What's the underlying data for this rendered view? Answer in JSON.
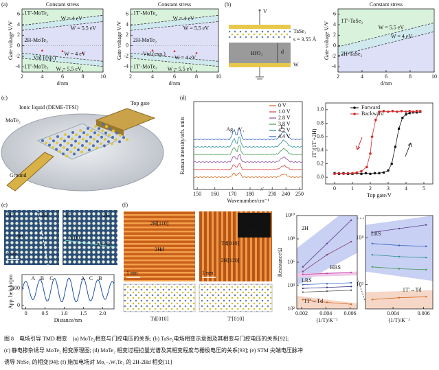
{
  "a": {
    "label": "(a)",
    "plots": [
      {
        "title": "Constant stress",
        "xlabel": "d/nm",
        "ylabel": "Gate voltage V/V",
        "xlim": [
          2,
          10
        ],
        "ylim": [
          -5,
          7
        ],
        "xticks": [
          2,
          4,
          6,
          8,
          10
        ],
        "yticks": [
          -4,
          -2,
          0,
          2,
          4,
          6
        ],
        "annotations": [
          "1T′-MoTe₂",
          "W = 4 eV",
          "W = 5.5 eV",
          "2H-MoTe₂",
          "W = 4 eV",
          "Vtd (exp.)",
          "1T′-MoTe₂",
          "W = 5.5 eV"
        ]
      },
      {
        "title": "Constant stress",
        "xlabel": "d/nm",
        "ylabel": "Gate voltage V/V",
        "xlim": [
          2,
          10
        ],
        "ylim": [
          -5,
          7
        ],
        "xticks": [
          2,
          4,
          6,
          8,
          10
        ],
        "yticks": [
          -4,
          -2,
          0,
          2,
          4,
          6
        ],
        "annotations": [
          "1T′-MoTe₂",
          "W = 4 eV",
          "W = 5.5 eV",
          "2H-MoTe₂",
          "Vtd (exp.)",
          "W = 4 eV",
          "1T′-MoTe₂",
          "W = 5.5 eV"
        ]
      }
    ]
  },
  "b": {
    "label": "(b)",
    "schematic": [
      "V",
      "TaSe₂",
      "s = 3.55 Å",
      "HfO₂",
      "d",
      "W"
    ],
    "plot": {
      "title": "Constant stress",
      "xlabel": "d/nm",
      "ylabel": "Gate voltage V/V",
      "xlim": [
        2,
        10
      ],
      "ylim": [
        -5,
        7
      ],
      "xticks": [
        2,
        4,
        6,
        8,
        10
      ],
      "yticks": [
        -4,
        -2,
        0,
        2,
        4,
        6
      ],
      "annotations": [
        "1T′-TaSe₂",
        "W = 5.5 eV",
        "W = 4 eV",
        "2H-TaSe₂"
      ]
    }
  },
  "c": {
    "label": "(c)",
    "texts": [
      "Ionic liquid (DEME-TFSI)",
      "Top gate",
      "MoTe₂",
      "Ground"
    ]
  },
  "d": {
    "label": "(d)",
    "raman": {
      "xlabel": "Wavenumber/cm⁻¹",
      "ylabel": "Raman intensity/arb. units",
      "xlim": [
        148,
        185,
        225,
        252
      ],
      "xticks": [
        150,
        160,
        170,
        180,
        230,
        240,
        250
      ],
      "peaks": [
        "Ag",
        "A′₁",
        "E′"
      ],
      "series": [
        {
          "name": "0 V",
          "color": "#d2691e"
        },
        {
          "name": "1.0 V",
          "color": "#d43f3f"
        },
        {
          "name": "2.8 V",
          "color": "#8b4c9e"
        },
        {
          "name": "3.8 V",
          "color": "#3f9a4f"
        },
        {
          "name": "4.2 V",
          "color": "#2a8f9a"
        },
        {
          "name": "4.4 V",
          "color": "#2f5fc0"
        }
      ]
    },
    "hysteresis": {
      "xlabel": "Top gate/V",
      "ylabel": "1T′/(1T′+2H)",
      "xlim": [
        -0.5,
        5.5
      ],
      "ylim": [
        -0.1,
        1.1
      ],
      "xticks": [
        0,
        1,
        2,
        3,
        4,
        5
      ],
      "yticks": [
        {
          "value": 0,
          "label": "0.0"
        },
        0.2,
        0.4,
        0.6,
        0.8,
        {
          "value": 1,
          "label": "1.0"
        }
      ],
      "series": [
        {
          "name": "Forward",
          "color": "#111111",
          "x": [
            0,
            0.25,
            0.5,
            0.75,
            1,
            1.25,
            1.5,
            1.75,
            2,
            2.25,
            2.5,
            2.75,
            3,
            3.2,
            3.4,
            3.6,
            3.8,
            4,
            4.2,
            4.4,
            4.6,
            4.8
          ],
          "values": [
            0.06,
            0.05,
            0.06,
            0.05,
            0.05,
            0.06,
            0.05,
            0.06,
            0.05,
            0.06,
            0.06,
            0.07,
            0.1,
            0.2,
            0.45,
            0.72,
            0.88,
            0.93,
            0.95,
            0.96,
            0.96,
            0.97
          ]
        },
        {
          "name": "Backward",
          "color": "#d62728",
          "x": [
            4.8,
            4.6,
            4.4,
            4.2,
            4,
            3.75,
            3.5,
            3.25,
            3,
            2.75,
            2.5,
            2.3,
            2.1,
            2,
            1.8,
            1.5,
            1.25,
            1,
            0.75,
            0.5,
            0.25,
            0
          ],
          "values": [
            0.98,
            0.98,
            0.97,
            0.98,
            0.97,
            0.98,
            0.97,
            0.98,
            0.97,
            0.98,
            0.97,
            0.85,
            0.6,
            0.35,
            0.15,
            0.09,
            0.07,
            0.06,
            0.06,
            0.05,
            0.06,
            0.05
          ]
        }
      ]
    }
  },
  "e": {
    "label": "(e)",
    "image_texts": [
      "1T′",
      "2H",
      "am",
      "1 nm",
      "1T′",
      "2H",
      "A B C",
      "A C B"
    ],
    "profile": {
      "xlabel": "Distance/nm",
      "ylabel": "App. height/pm",
      "xlim": [
        -0.1,
        2.3
      ],
      "ylim": [
        -20,
        180
      ],
      "xticks": [
        0,
        0.5,
        {
          "value": 1,
          "label": "1.0"
        },
        1.5,
        {
          "value": 2,
          "label": "2.0"
        }
      ],
      "yticks": [
        0,
        100
      ],
      "annotations": [
        "A",
        "B",
        "C",
        "A",
        "C",
        "B"
      ]
    }
  },
  "f": {
    "label": "(f)",
    "image_texts": [
      "2H[110]",
      "2Hd",
      "1 nm",
      "Td[010]",
      "2H[120]",
      "1 nm",
      "002",
      "000",
      "200",
      "Td[010]",
      "T′[010]"
    ],
    "resistance": [
      {
        "xlabel": "(1/T)/K⁻¹",
        "ylabel": "Resistance/Ω",
        "log": true,
        "xlim": [
          0.0016,
          0.0066
        ],
        "ylim": [
          100,
          10000000000
        ],
        "xticks": [
          0.002,
          0.004,
          0.006
        ],
        "yticks": [
          {
            "value": 100,
            "label": "10²"
          },
          {
            "value": 10000,
            "label": "10⁴"
          },
          {
            "value": 1000000,
            "label": "10⁶"
          },
          {
            "value": 100000000,
            "label": "10⁸"
          },
          {
            "value": 10000000000,
            "label": "10¹⁰"
          }
        ],
        "annotations": [
          "2H",
          "HRS",
          "LRS",
          "1T′→Td"
        ]
      },
      {
        "xlabel": "(1/T)/K⁻¹",
        "log": true,
        "xlim": [
          0.0022,
          0.0066
        ],
        "ylim": [
          300,
          30000
        ],
        "xticks": [
          0.004,
          0.006
        ],
        "yticks": [
          {
            "value": 1000,
            "label": "10³"
          },
          {
            "value": 10000,
            "label": "10⁴"
          }
        ],
        "annotations": [
          "LRS",
          "1T′→Td"
        ]
      }
    ]
  },
  "caption": [
    "图 8　电场引导 TMD 相变　(a) MoTe₂相变与门控电压的关系; (b) TaSe₂电场相变示意图及其相变与门控电压的关系[92];",
    "(c) 静电掺杂诱导 MoTe₂ 相变原理图; (d) MoTe₂ 相变过程拉曼光谱及其相变程度与栅极电压的关系[93]; (e) STM 尖端电压脉冲",
    "诱导 NbSe₂ 的相变[94]; (f) 施加电场对 Mo₁₋ₓWₓTe₂ 的 2H-2Hd 相变[11]"
  ]
}
